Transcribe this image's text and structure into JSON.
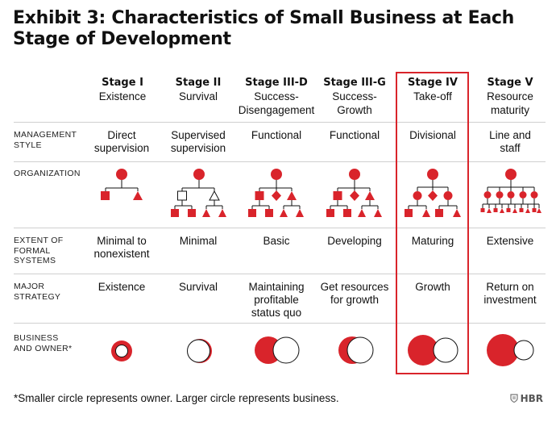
{
  "title": "Exhibit 3: Characteristics of Small Business at Each Stage of Development",
  "stages": [
    {
      "name": "Stage I",
      "desc": "Existence"
    },
    {
      "name": "Stage II",
      "desc": "Survival"
    },
    {
      "name": "Stage III-D",
      "desc": "Success-\nDisengagement"
    },
    {
      "name": "Stage III-G",
      "desc": "Success-\nGrowth"
    },
    {
      "name": "Stage IV",
      "desc": "Take-off"
    },
    {
      "name": "Stage V",
      "desc": "Resource\nmaturity"
    }
  ],
  "row_labels": {
    "management_style": "MANAGEMENT\nSTYLE",
    "organization": "ORGANIZATION",
    "formal_systems": "EXTENT OF\nFORMAL\nSYSTEMS",
    "major_strategy": "MAJOR\nSTRATEGY",
    "business_owner": "BUSINESS\nAND OWNER*"
  },
  "management_style": [
    "Direct\nsupervision",
    "Supervised\nsupervision",
    "Functional",
    "Functional",
    "Divisional",
    "Line and\nstaff"
  ],
  "formal_systems": [
    "Minimal to\nnonexistent",
    "Minimal",
    "Basic",
    "Developing",
    "Maturing",
    "Extensive"
  ],
  "major_strategy": [
    "Existence",
    "Survival",
    "Maintaining\nprofitable\nstatus quo",
    "Get resources\nfor growth",
    "Growth",
    "Return on\ninvestment"
  ],
  "highlighted_stage": "Stage IV",
  "colors": {
    "accent": "#d9242b",
    "rule": "#cfcfcf",
    "text": "#111111"
  },
  "footnote": "*Smaller circle represents owner. Larger circle represents business.",
  "brand": "HBR",
  "brand_icon": "hbr-shield-icon"
}
